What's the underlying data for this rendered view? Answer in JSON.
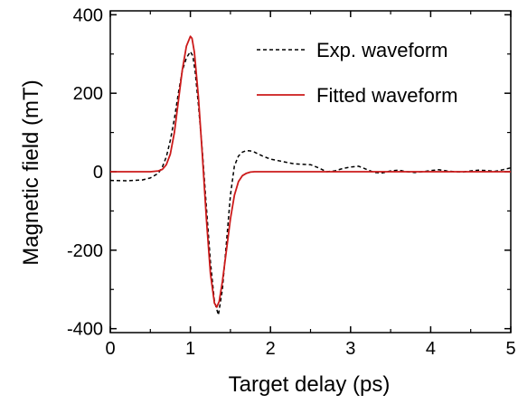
{
  "chart_data": {
    "type": "line",
    "title": "",
    "xlabel": "Target delay (ps)",
    "ylabel": "Magnetic field (mT)",
    "xlim": [
      0,
      5
    ],
    "ylim": [
      -410,
      410
    ],
    "x_ticks": [
      0,
      1,
      2,
      3,
      4,
      5
    ],
    "y_ticks": [
      -400,
      -200,
      0,
      200,
      400
    ],
    "x_tick_labels": [
      "0",
      "1",
      "2",
      "3",
      "4",
      "5"
    ],
    "y_tick_labels": [
      "-400",
      "-200",
      "0",
      "200",
      "400"
    ],
    "grid": false,
    "legend_position": "top-right",
    "series": [
      {
        "name": "Exp. waveform",
        "color": "#000000",
        "style": "dashed",
        "x": [
          0,
          0.2,
          0.4,
          0.5,
          0.6,
          0.65,
          0.7,
          0.75,
          0.8,
          0.85,
          0.9,
          0.95,
          1.0,
          1.03,
          1.06,
          1.1,
          1.15,
          1.2,
          1.25,
          1.3,
          1.35,
          1.4,
          1.45,
          1.5,
          1.55,
          1.6,
          1.65,
          1.7,
          1.75,
          1.8,
          1.85,
          1.9,
          2.0,
          2.1,
          2.2,
          2.3,
          2.4,
          2.5,
          2.6,
          2.7,
          2.8,
          2.9,
          3.0,
          3.1,
          3.2,
          3.3,
          3.4,
          3.5,
          3.6,
          3.7,
          3.8,
          3.9,
          4.0,
          4.1,
          4.2,
          4.3,
          4.4,
          4.5,
          4.6,
          4.7,
          4.8,
          4.9,
          5.0
        ],
        "y": [
          -22,
          -23,
          -21,
          -16,
          -4,
          12,
          38,
          80,
          135,
          200,
          258,
          290,
          306,
          295,
          255,
          170,
          50,
          -90,
          -230,
          -330,
          -365,
          -300,
          -180,
          -60,
          15,
          40,
          50,
          54,
          53,
          50,
          45,
          40,
          32,
          28,
          24,
          20,
          19,
          18,
          10,
          0,
          2,
          8,
          12,
          14,
          6,
          -2,
          -3,
          2,
          4,
          0,
          -2,
          0,
          3,
          5,
          2,
          0,
          -1,
          2,
          4,
          3,
          1,
          5,
          10
        ]
      },
      {
        "name": "Fitted waveform",
        "color": "#cc1a1a",
        "style": "solid",
        "x": [
          0,
          0.2,
          0.4,
          0.5,
          0.6,
          0.65,
          0.7,
          0.75,
          0.8,
          0.85,
          0.9,
          0.95,
          1.0,
          1.02,
          1.05,
          1.1,
          1.15,
          1.2,
          1.25,
          1.3,
          1.33,
          1.36,
          1.4,
          1.45,
          1.5,
          1.55,
          1.6,
          1.65,
          1.7,
          1.75,
          1.8,
          1.9,
          2.0,
          2.5,
          3.0,
          3.5,
          4.0,
          4.5,
          5.0
        ],
        "y": [
          0,
          0,
          0,
          0,
          2,
          6,
          18,
          45,
          100,
          180,
          260,
          320,
          345,
          340,
          305,
          190,
          40,
          -120,
          -260,
          -335,
          -345,
          -330,
          -280,
          -200,
          -120,
          -60,
          -25,
          -10,
          -4,
          -1,
          0,
          0,
          0,
          0,
          0,
          0,
          0,
          0,
          0
        ]
      }
    ]
  }
}
